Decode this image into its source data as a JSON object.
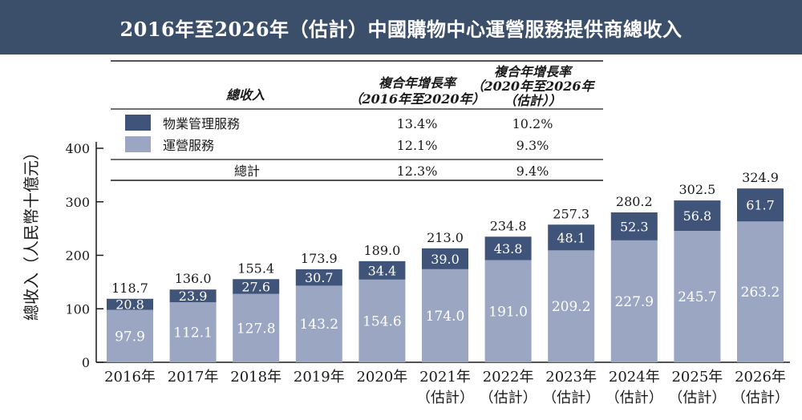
{
  "title": "2016年至2026年（估計）中國購物中心運營服務提供商總收入",
  "colors": {
    "title_bg": "#3b4f6b",
    "property_management": "#3f5478",
    "operation_services": "#9aa6c2"
  },
  "chart_data": {
    "type": "bar",
    "stacked": true,
    "ylabel": "總收入（人民幣十億元）",
    "ylim": [
      0,
      400
    ],
    "yticks": [
      0,
      100,
      200,
      300,
      400
    ],
    "categories": [
      [
        "2016年"
      ],
      [
        "2017年"
      ],
      [
        "2018年"
      ],
      [
        "2019年"
      ],
      [
        "2020年"
      ],
      [
        "2021年",
        "（估計）"
      ],
      [
        "2022年",
        "（估計）"
      ],
      [
        "2023年",
        "（估計）"
      ],
      [
        "2024年",
        "（估計）"
      ],
      [
        "2025年",
        "（估計）"
      ],
      [
        "2026年",
        "（估計）"
      ]
    ],
    "series": [
      {
        "name": "運營服務",
        "values": [
          97.9,
          112.1,
          127.8,
          143.2,
          154.6,
          174.0,
          191.0,
          209.2,
          227.9,
          245.7,
          263.2
        ]
      },
      {
        "name": "物業管理服務",
        "values": [
          20.8,
          23.9,
          27.6,
          30.7,
          34.4,
          39.0,
          43.8,
          48.1,
          52.3,
          56.8,
          61.7
        ]
      }
    ],
    "totals": [
      118.7,
      136.0,
      155.4,
      173.9,
      189.0,
      213.0,
      234.8,
      257.3,
      280.2,
      302.5,
      324.9
    ]
  },
  "cagr_table": {
    "header_label": "總收入",
    "col1_header": [
      "複合年增長率",
      "（2016年至2020年）"
    ],
    "col2_header": [
      "複合年增長率",
      "（2020年至2026年",
      "（估計））"
    ],
    "rows": [
      {
        "label": "物業管理服務",
        "cagr1": "13.4%",
        "cagr2": "10.2%"
      },
      {
        "label": "運營服務",
        "cagr1": "12.1%",
        "cagr2": "9.3%"
      }
    ],
    "total_row": {
      "label": "總計",
      "cagr1": "12.3%",
      "cagr2": "9.4%"
    }
  }
}
